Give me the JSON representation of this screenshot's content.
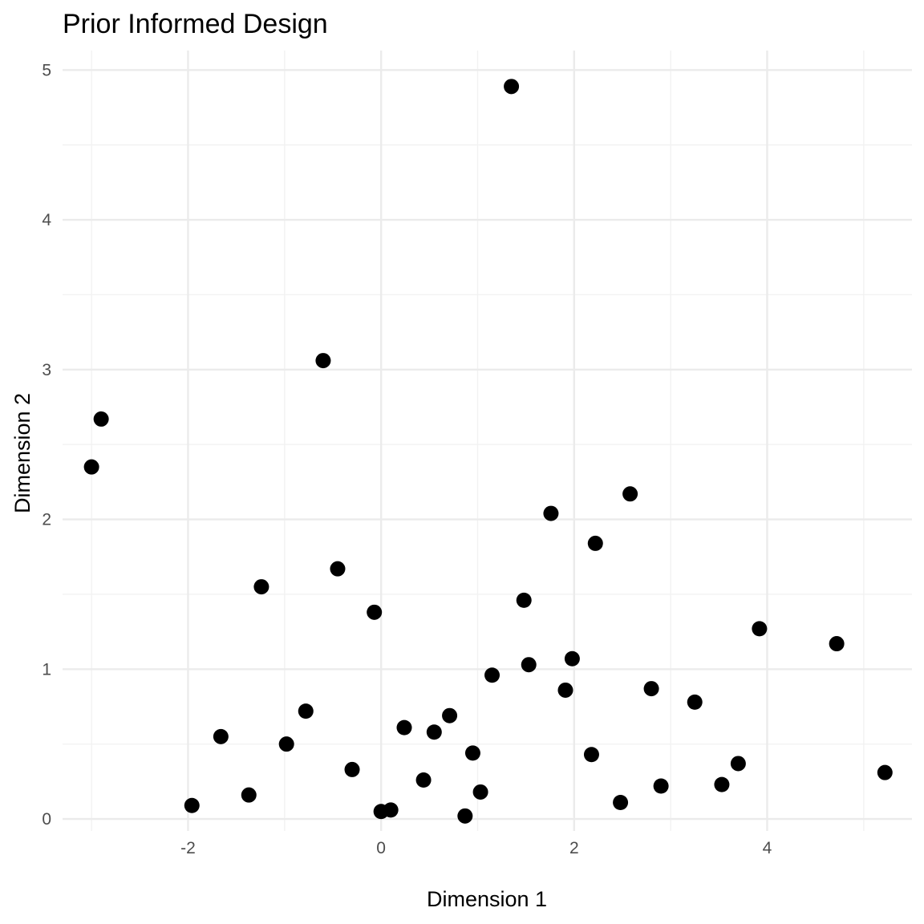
{
  "chart_data": {
    "type": "scatter",
    "title": "Prior Informed Design",
    "xlabel": "Dimension 1",
    "ylabel": "Dimension 2",
    "xlim": [
      -3.3,
      5.5
    ],
    "ylim": [
      -0.08,
      5.13
    ],
    "x_ticks": [
      -2,
      0,
      2,
      4
    ],
    "x_tick_labels": [
      "-2",
      "0",
      "2",
      "4"
    ],
    "y_ticks": [
      0,
      1,
      2,
      3,
      4,
      5
    ],
    "y_tick_labels": [
      "0",
      "1",
      "2",
      "3",
      "4",
      "5"
    ],
    "x_minor": [
      -3,
      -1,
      1,
      3,
      5
    ],
    "y_minor": [
      0.5,
      1.5,
      2.5,
      3.5,
      4.5
    ],
    "grid": true,
    "legend": "none",
    "point_color": "#000000",
    "points": [
      {
        "x": 1.35,
        "y": 4.89
      },
      {
        "x": -0.6,
        "y": 3.06
      },
      {
        "x": -2.9,
        "y": 2.67
      },
      {
        "x": -3.0,
        "y": 2.35
      },
      {
        "x": 2.58,
        "y": 2.17
      },
      {
        "x": 1.76,
        "y": 2.04
      },
      {
        "x": 2.22,
        "y": 1.84
      },
      {
        "x": -0.45,
        "y": 1.67
      },
      {
        "x": -1.24,
        "y": 1.55
      },
      {
        "x": 1.48,
        "y": 1.46
      },
      {
        "x": -0.07,
        "y": 1.38
      },
      {
        "x": 3.92,
        "y": 1.27
      },
      {
        "x": 4.72,
        "y": 1.17
      },
      {
        "x": 1.98,
        "y": 1.07
      },
      {
        "x": 1.53,
        "y": 1.03
      },
      {
        "x": 1.15,
        "y": 0.96
      },
      {
        "x": 2.8,
        "y": 0.87
      },
      {
        "x": 1.91,
        "y": 0.86
      },
      {
        "x": 3.25,
        "y": 0.78
      },
      {
        "x": -0.78,
        "y": 0.72
      },
      {
        "x": 0.71,
        "y": 0.69
      },
      {
        "x": 0.24,
        "y": 0.61
      },
      {
        "x": 0.55,
        "y": 0.58
      },
      {
        "x": -1.66,
        "y": 0.55
      },
      {
        "x": -0.98,
        "y": 0.5
      },
      {
        "x": 0.95,
        "y": 0.44
      },
      {
        "x": 2.18,
        "y": 0.43
      },
      {
        "x": 3.7,
        "y": 0.37
      },
      {
        "x": -0.3,
        "y": 0.33
      },
      {
        "x": 5.22,
        "y": 0.31
      },
      {
        "x": 0.44,
        "y": 0.26
      },
      {
        "x": 3.53,
        "y": 0.23
      },
      {
        "x": 2.9,
        "y": 0.22
      },
      {
        "x": 1.03,
        "y": 0.18
      },
      {
        "x": -1.37,
        "y": 0.16
      },
      {
        "x": 2.48,
        "y": 0.11
      },
      {
        "x": -1.96,
        "y": 0.09
      },
      {
        "x": 0.1,
        "y": 0.06
      },
      {
        "x": 0.0,
        "y": 0.05
      },
      {
        "x": 0.87,
        "y": 0.02
      }
    ]
  }
}
